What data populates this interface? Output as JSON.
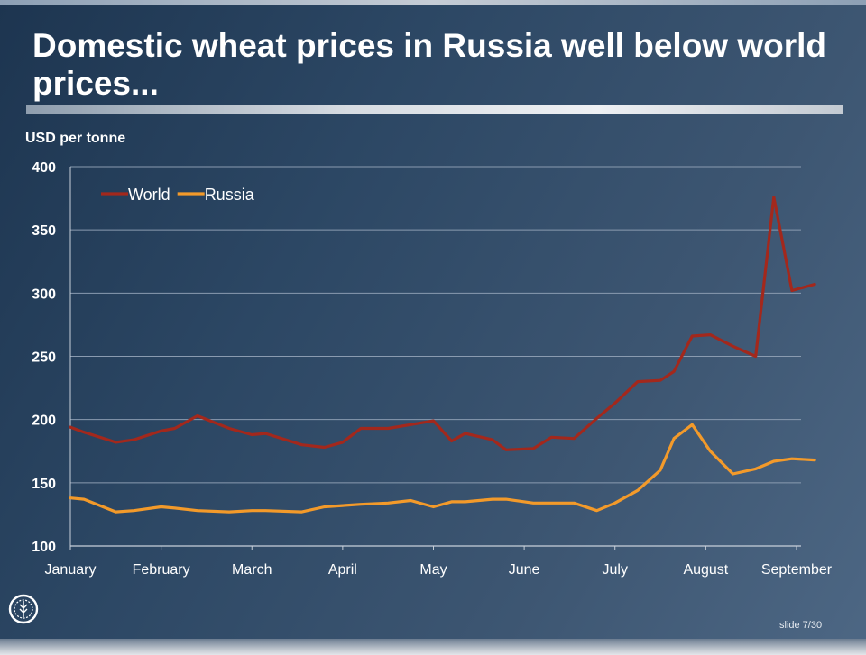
{
  "slide": {
    "title": "Domestic wheat prices in Russia well below world prices...",
    "slide_number": "slide 7/30"
  },
  "chart_data": {
    "type": "line",
    "title": "",
    "ylabel": "USD per tonne",
    "xlabel": "",
    "ylim": [
      100,
      400
    ],
    "yticks": [
      100,
      150,
      200,
      250,
      300,
      350,
      400
    ],
    "grid": true,
    "legend_position": "top-left",
    "x_tick_labels": [
      "January",
      "February",
      "March",
      "April",
      "May",
      "June",
      "July",
      "August",
      "September"
    ],
    "x": [
      0,
      0.15,
      0.5,
      0.7,
      1,
      1.15,
      1.4,
      1.75,
      2,
      2.15,
      2.55,
      2.8,
      3,
      3.2,
      3.5,
      3.75,
      4,
      4.2,
      4.35,
      4.65,
      4.8,
      5.1,
      5.3,
      5.55,
      5.8,
      6,
      6.25,
      6.5,
      6.65,
      6.85,
      7.05,
      7.3,
      7.55,
      7.75,
      7.95,
      8.2
    ],
    "series": [
      {
        "name": "World",
        "color": "#a3281c",
        "values": [
          194,
          190,
          182,
          184,
          191,
          193,
          203,
          193,
          188,
          189,
          180,
          178,
          182,
          193,
          193,
          196,
          199,
          183,
          189,
          184,
          176,
          177,
          186,
          185,
          201,
          213,
          230,
          231,
          238,
          266,
          267,
          258,
          250,
          376,
          302,
          307
        ]
      },
      {
        "name": "Russia",
        "color": "#f39a2a",
        "values": [
          138,
          137,
          127,
          128,
          131,
          130,
          128,
          127,
          128,
          128,
          127,
          131,
          132,
          133,
          134,
          136,
          131,
          135,
          135,
          137,
          137,
          134,
          134,
          134,
          128,
          134,
          144,
          160,
          185,
          196,
          175,
          157,
          161,
          167,
          169,
          168
        ]
      }
    ]
  }
}
